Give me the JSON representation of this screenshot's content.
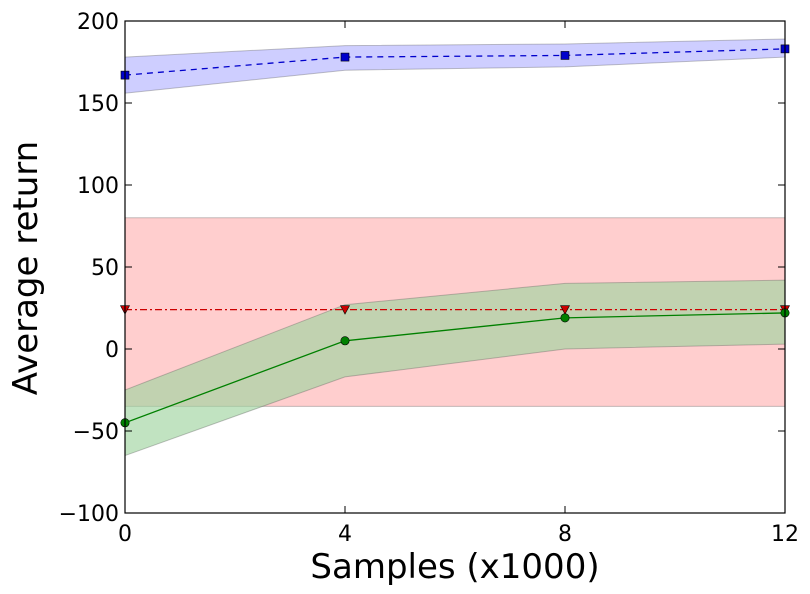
{
  "chart_data": {
    "type": "line",
    "title": "",
    "xlabel": "Samples (x1000)",
    "ylabel": "Average return",
    "xlim": [
      0,
      12
    ],
    "ylim": [
      -100,
      200
    ],
    "xticks": [
      0,
      4,
      8,
      12
    ],
    "yticks": [
      -100,
      -50,
      0,
      50,
      100,
      150,
      200
    ],
    "x": [
      0,
      4,
      8,
      12
    ],
    "series": [
      {
        "name": "blue-dashed-squares",
        "color": "#0000cc",
        "fill": "#b3b3ff",
        "line": "dashed",
        "marker": "square",
        "values": [
          167,
          178,
          179,
          183
        ],
        "lower": [
          156,
          170,
          172,
          178
        ],
        "upper": [
          178,
          185,
          186,
          189
        ]
      },
      {
        "name": "red-dashdot-triangles",
        "color": "#cc0000",
        "fill": "#ffb3b3",
        "line": "dashdot",
        "marker": "triangle-down",
        "values": [
          24,
          24,
          24,
          24
        ],
        "lower": [
          -35,
          -35,
          -35,
          -35
        ],
        "upper": [
          80,
          80,
          80,
          80
        ]
      },
      {
        "name": "green-solid-circles",
        "color": "#008000",
        "fill": "#9fd49f",
        "line": "solid",
        "marker": "circle",
        "values": [
          -45,
          5,
          19,
          22
        ],
        "lower": [
          -65,
          -17,
          0,
          3
        ],
        "upper": [
          -25,
          27,
          40,
          42
        ]
      }
    ]
  }
}
